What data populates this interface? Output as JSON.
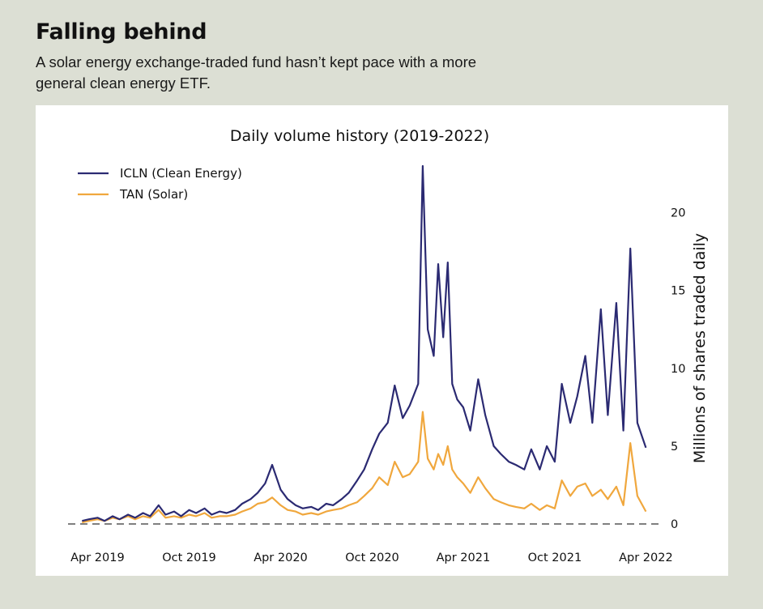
{
  "header": {
    "headline": "Falling behind",
    "subhead": "A solar energy exchange-traded fund hasn’t kept pace with a more general clean energy ETF."
  },
  "chart_data": {
    "type": "line",
    "title": "Daily volume history (2019-2022)",
    "xlabel": "",
    "ylabel": "Millions of shares traded daily",
    "x_ticks": [
      "Apr 2019",
      "Oct 2019",
      "Apr 2020",
      "Oct 2020",
      "Apr 2021",
      "Oct 2021",
      "Apr 2022"
    ],
    "y_ticks": [
      0,
      5,
      10,
      15,
      20
    ],
    "ylim": [
      0,
      23
    ],
    "xlim": [
      "2019-02-01",
      "2022-04-15"
    ],
    "grid": false,
    "y_axis_side": "right",
    "baseline": {
      "value": 0,
      "style": "dashed",
      "color": "#7f7f7f"
    },
    "legend_position": "top-left",
    "series": [
      {
        "name": "ICLN (Clean Energy)",
        "color": "#2b2a72",
        "points": [
          [
            "2019-03-01",
            0.2
          ],
          [
            "2019-03-15",
            0.3
          ],
          [
            "2019-04-01",
            0.4
          ],
          [
            "2019-04-15",
            0.2
          ],
          [
            "2019-05-01",
            0.5
          ],
          [
            "2019-05-15",
            0.3
          ],
          [
            "2019-06-01",
            0.6
          ],
          [
            "2019-06-15",
            0.4
          ],
          [
            "2019-07-01",
            0.7
          ],
          [
            "2019-07-15",
            0.5
          ],
          [
            "2019-08-01",
            1.2
          ],
          [
            "2019-08-15",
            0.6
          ],
          [
            "2019-09-01",
            0.8
          ],
          [
            "2019-09-15",
            0.5
          ],
          [
            "2019-10-01",
            0.9
          ],
          [
            "2019-10-15",
            0.7
          ],
          [
            "2019-11-01",
            1.0
          ],
          [
            "2019-11-15",
            0.6
          ],
          [
            "2019-12-01",
            0.8
          ],
          [
            "2019-12-15",
            0.7
          ],
          [
            "2020-01-01",
            0.9
          ],
          [
            "2020-01-15",
            1.3
          ],
          [
            "2020-02-01",
            1.6
          ],
          [
            "2020-02-15",
            2.0
          ],
          [
            "2020-03-01",
            2.6
          ],
          [
            "2020-03-15",
            3.8
          ],
          [
            "2020-04-01",
            2.2
          ],
          [
            "2020-04-15",
            1.6
          ],
          [
            "2020-05-01",
            1.2
          ],
          [
            "2020-05-15",
            1.0
          ],
          [
            "2020-06-01",
            1.1
          ],
          [
            "2020-06-15",
            0.9
          ],
          [
            "2020-07-01",
            1.3
          ],
          [
            "2020-07-15",
            1.2
          ],
          [
            "2020-08-01",
            1.6
          ],
          [
            "2020-08-15",
            2.0
          ],
          [
            "2020-09-01",
            2.8
          ],
          [
            "2020-09-15",
            3.5
          ],
          [
            "2020-10-01",
            4.8
          ],
          [
            "2020-10-15",
            5.8
          ],
          [
            "2020-11-01",
            6.5
          ],
          [
            "2020-11-15",
            8.9
          ],
          [
            "2020-12-01",
            6.8
          ],
          [
            "2020-12-15",
            7.6
          ],
          [
            "2021-01-01",
            9.0
          ],
          [
            "2021-01-10",
            23.0
          ],
          [
            "2021-01-20",
            12.5
          ],
          [
            "2021-02-01",
            10.8
          ],
          [
            "2021-02-10",
            16.7
          ],
          [
            "2021-02-20",
            12.0
          ],
          [
            "2021-03-01",
            16.8
          ],
          [
            "2021-03-10",
            9.0
          ],
          [
            "2021-03-20",
            8.0
          ],
          [
            "2021-04-01",
            7.5
          ],
          [
            "2021-04-15",
            6.0
          ],
          [
            "2021-05-01",
            9.3
          ],
          [
            "2021-05-15",
            7.0
          ],
          [
            "2021-06-01",
            5.0
          ],
          [
            "2021-06-15",
            4.5
          ],
          [
            "2021-07-01",
            4.0
          ],
          [
            "2021-07-15",
            3.8
          ],
          [
            "2021-08-01",
            3.5
          ],
          [
            "2021-08-15",
            4.8
          ],
          [
            "2021-09-01",
            3.5
          ],
          [
            "2021-09-15",
            5.0
          ],
          [
            "2021-10-01",
            4.0
          ],
          [
            "2021-10-15",
            9.0
          ],
          [
            "2021-11-01",
            6.5
          ],
          [
            "2021-11-15",
            8.2
          ],
          [
            "2021-12-01",
            10.8
          ],
          [
            "2021-12-15",
            6.5
          ],
          [
            "2022-01-01",
            13.8
          ],
          [
            "2022-01-15",
            7.0
          ],
          [
            "2022-02-01",
            14.2
          ],
          [
            "2022-02-15",
            6.0
          ],
          [
            "2022-03-01",
            17.7
          ],
          [
            "2022-03-15",
            6.5
          ],
          [
            "2022-04-01",
            4.9
          ]
        ]
      },
      {
        "name": "TAN (Solar)",
        "color": "#f0a73d",
        "points": [
          [
            "2019-03-01",
            0.1
          ],
          [
            "2019-03-15",
            0.2
          ],
          [
            "2019-04-01",
            0.3
          ],
          [
            "2019-04-15",
            0.2
          ],
          [
            "2019-05-01",
            0.4
          ],
          [
            "2019-05-15",
            0.3
          ],
          [
            "2019-06-01",
            0.5
          ],
          [
            "2019-06-15",
            0.3
          ],
          [
            "2019-07-01",
            0.5
          ],
          [
            "2019-07-15",
            0.4
          ],
          [
            "2019-08-01",
            0.9
          ],
          [
            "2019-08-15",
            0.4
          ],
          [
            "2019-09-01",
            0.5
          ],
          [
            "2019-09-15",
            0.4
          ],
          [
            "2019-10-01",
            0.6
          ],
          [
            "2019-10-15",
            0.5
          ],
          [
            "2019-11-01",
            0.7
          ],
          [
            "2019-11-15",
            0.4
          ],
          [
            "2019-12-01",
            0.5
          ],
          [
            "2019-12-15",
            0.5
          ],
          [
            "2020-01-01",
            0.6
          ],
          [
            "2020-01-15",
            0.8
          ],
          [
            "2020-02-01",
            1.0
          ],
          [
            "2020-02-15",
            1.3
          ],
          [
            "2020-03-01",
            1.4
          ],
          [
            "2020-03-15",
            1.7
          ],
          [
            "2020-04-01",
            1.2
          ],
          [
            "2020-04-15",
            0.9
          ],
          [
            "2020-05-01",
            0.8
          ],
          [
            "2020-05-15",
            0.6
          ],
          [
            "2020-06-01",
            0.7
          ],
          [
            "2020-06-15",
            0.6
          ],
          [
            "2020-07-01",
            0.8
          ],
          [
            "2020-07-15",
            0.9
          ],
          [
            "2020-08-01",
            1.0
          ],
          [
            "2020-08-15",
            1.2
          ],
          [
            "2020-09-01",
            1.4
          ],
          [
            "2020-09-15",
            1.8
          ],
          [
            "2020-10-01",
            2.3
          ],
          [
            "2020-10-15",
            3.0
          ],
          [
            "2020-11-01",
            2.5
          ],
          [
            "2020-11-15",
            4.0
          ],
          [
            "2020-12-01",
            3.0
          ],
          [
            "2020-12-15",
            3.2
          ],
          [
            "2021-01-01",
            4.0
          ],
          [
            "2021-01-10",
            7.2
          ],
          [
            "2021-01-20",
            4.2
          ],
          [
            "2021-02-01",
            3.5
          ],
          [
            "2021-02-10",
            4.5
          ],
          [
            "2021-02-20",
            3.8
          ],
          [
            "2021-03-01",
            5.0
          ],
          [
            "2021-03-10",
            3.5
          ],
          [
            "2021-03-20",
            3.0
          ],
          [
            "2021-04-01",
            2.6
          ],
          [
            "2021-04-15",
            2.0
          ],
          [
            "2021-05-01",
            3.0
          ],
          [
            "2021-05-15",
            2.3
          ],
          [
            "2021-06-01",
            1.6
          ],
          [
            "2021-06-15",
            1.4
          ],
          [
            "2021-07-01",
            1.2
          ],
          [
            "2021-07-15",
            1.1
          ],
          [
            "2021-08-01",
            1.0
          ],
          [
            "2021-08-15",
            1.3
          ],
          [
            "2021-09-01",
            0.9
          ],
          [
            "2021-09-15",
            1.2
          ],
          [
            "2021-10-01",
            1.0
          ],
          [
            "2021-10-15",
            2.8
          ],
          [
            "2021-11-01",
            1.8
          ],
          [
            "2021-11-15",
            2.4
          ],
          [
            "2021-12-01",
            2.6
          ],
          [
            "2021-12-15",
            1.8
          ],
          [
            "2022-01-01",
            2.2
          ],
          [
            "2022-01-15",
            1.6
          ],
          [
            "2022-02-01",
            2.4
          ],
          [
            "2022-02-15",
            1.2
          ],
          [
            "2022-03-01",
            5.2
          ],
          [
            "2022-03-15",
            1.8
          ],
          [
            "2022-04-01",
            0.8
          ]
        ]
      }
    ]
  }
}
